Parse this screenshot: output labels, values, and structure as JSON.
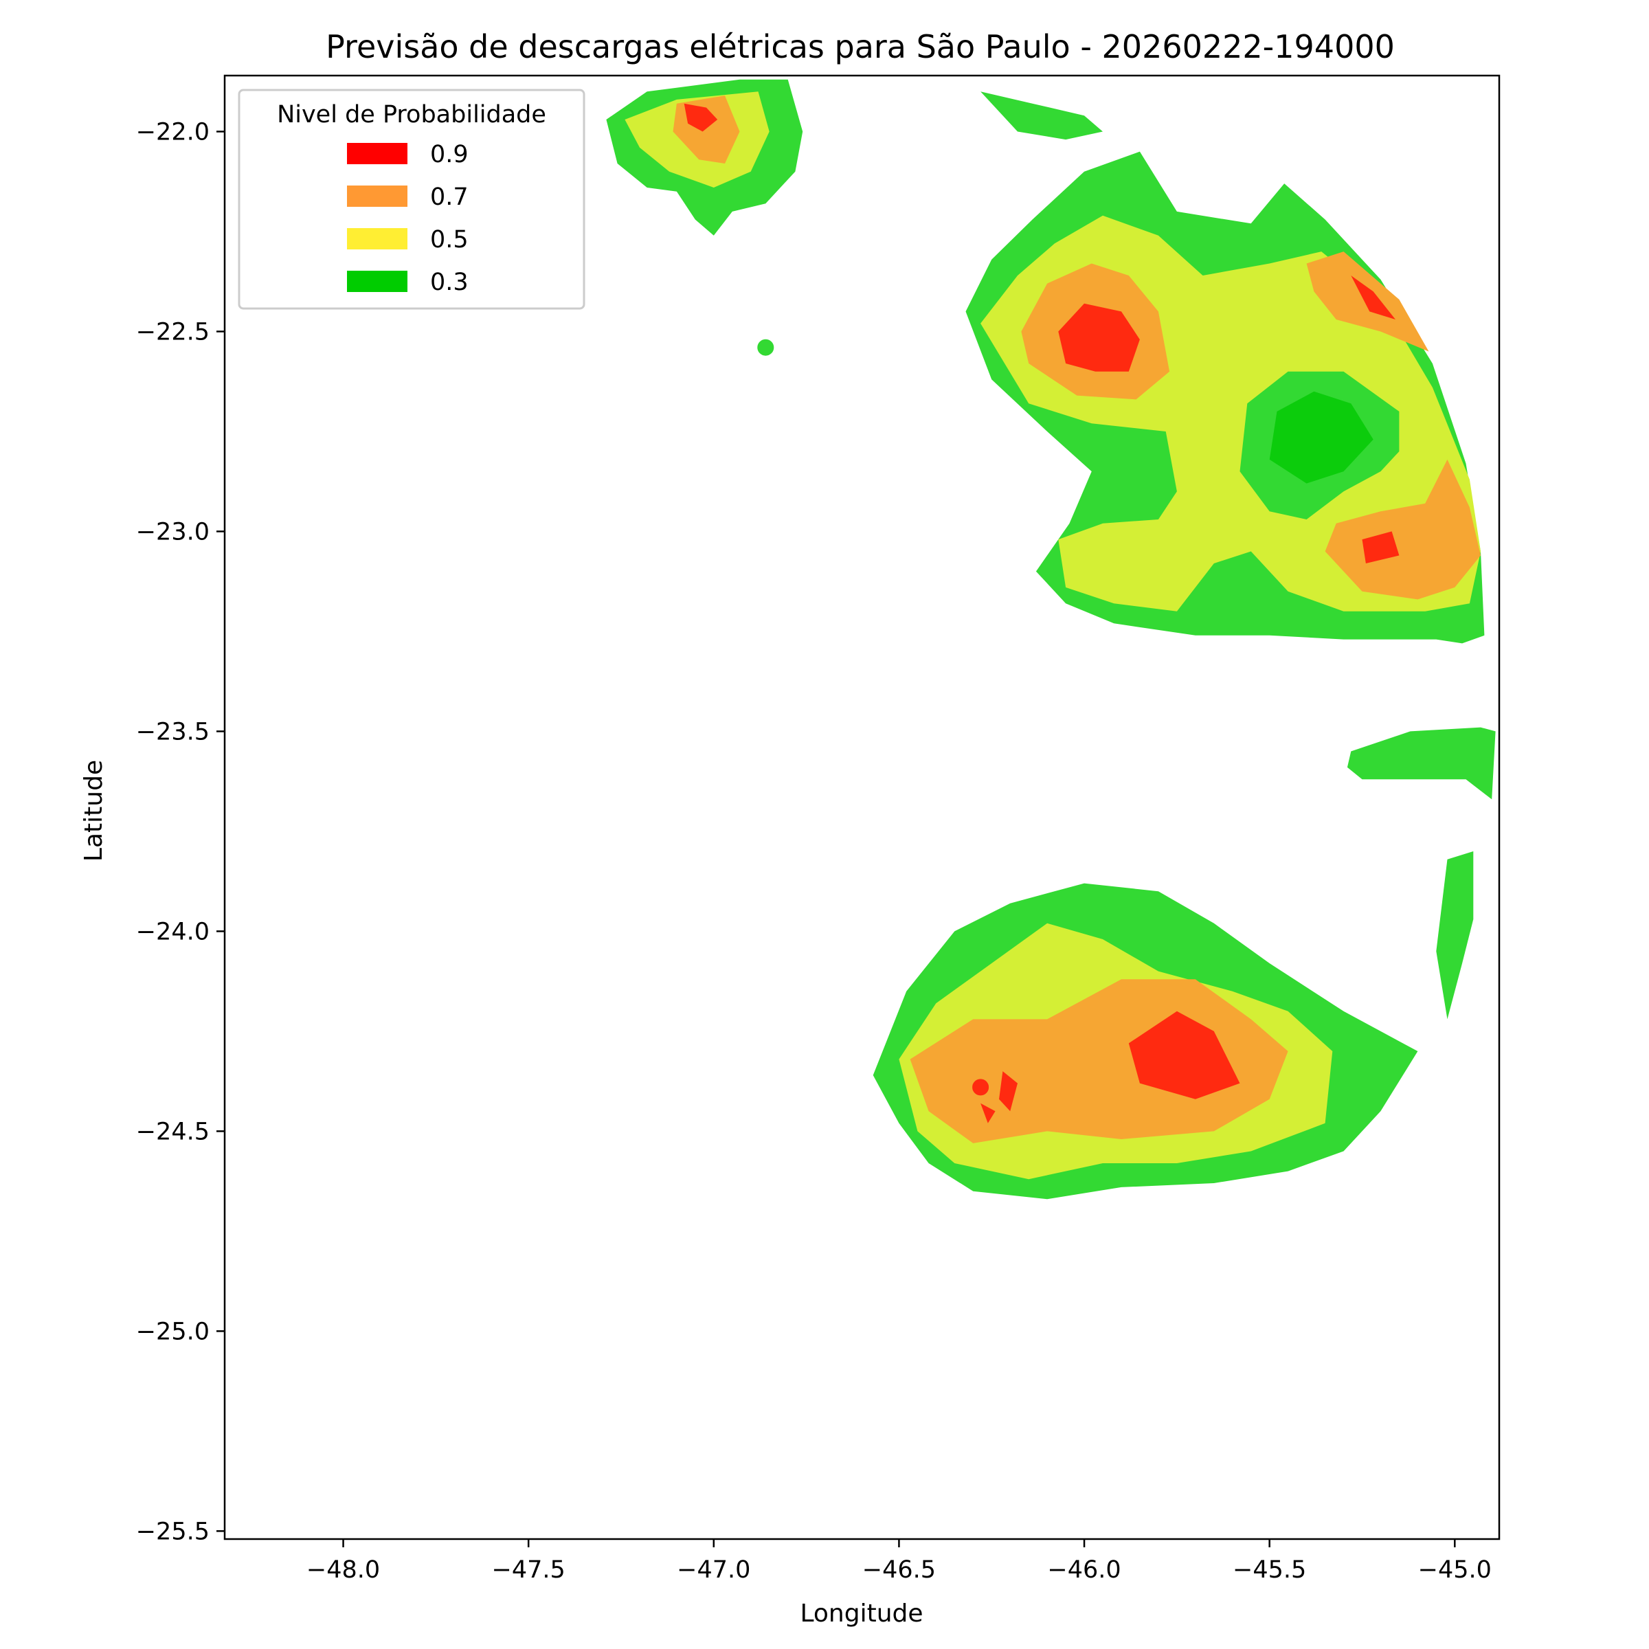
{
  "chart_data": {
    "type": "heatmap",
    "title": "Previsão de descargas elétricas para São Paulo - 20260222-194000",
    "xlabel": "Longitude",
    "ylabel": "Latitude",
    "xlim": [
      -48.32,
      -44.88
    ],
    "ylim": [
      -25.52,
      -21.86
    ],
    "xticks": [
      {
        "value": -48.0,
        "label": "−48.0"
      },
      {
        "value": -47.5,
        "label": "−47.5"
      },
      {
        "value": -47.0,
        "label": "−47.0"
      },
      {
        "value": -46.5,
        "label": "−46.5"
      },
      {
        "value": -46.0,
        "label": "−46.0"
      },
      {
        "value": -45.5,
        "label": "−45.5"
      },
      {
        "value": -45.0,
        "label": "−45.0"
      }
    ],
    "yticks": [
      {
        "value": -22.0,
        "label": "−22.0"
      },
      {
        "value": -22.5,
        "label": "−22.5"
      },
      {
        "value": -23.0,
        "label": "−23.0"
      },
      {
        "value": -23.5,
        "label": "−23.5"
      },
      {
        "value": -24.0,
        "label": "−24.0"
      },
      {
        "value": -24.5,
        "label": "−24.5"
      },
      {
        "value": -25.0,
        "label": "−25.0"
      },
      {
        "value": -25.5,
        "label": "−25.5"
      }
    ],
    "grid": false,
    "legend": {
      "title": "Nivel de Probabilidade",
      "placement": "upper-left",
      "entries": [
        {
          "label": "0.9",
          "color": "#ff0000"
        },
        {
          "label": "0.7",
          "color": "#ff9933"
        },
        {
          "label": "0.5",
          "color": "#ffee33"
        },
        {
          "label": "0.3",
          "color": "#00cc00"
        }
      ]
    },
    "fill_colors": {
      "0.3": "#33d933",
      "0.3_core": "#0ccc0c",
      "0.5": "#d4ef35",
      "0.7": "#f6a633",
      "0.9": "#ff2a10"
    },
    "regions": [
      {
        "level": "0.3",
        "points": [
          [
            -47.29,
            -21.97
          ],
          [
            -47.18,
            -21.9
          ],
          [
            -46.93,
            -21.87
          ],
          [
            -46.8,
            -21.87
          ],
          [
            -46.76,
            -22.0
          ],
          [
            -46.78,
            -22.1
          ],
          [
            -46.86,
            -22.18
          ],
          [
            -46.95,
            -22.2
          ],
          [
            -47.0,
            -22.26
          ],
          [
            -47.05,
            -22.22
          ],
          [
            -47.1,
            -22.15
          ],
          [
            -47.18,
            -22.14
          ],
          [
            -47.26,
            -22.08
          ]
        ]
      },
      {
        "level": "0.5",
        "points": [
          [
            -47.24,
            -21.97
          ],
          [
            -47.1,
            -21.92
          ],
          [
            -46.88,
            -21.9
          ],
          [
            -46.85,
            -22.0
          ],
          [
            -46.9,
            -22.1
          ],
          [
            -47.0,
            -22.14
          ],
          [
            -47.12,
            -22.1
          ],
          [
            -47.2,
            -22.04
          ]
        ]
      },
      {
        "level": "0.7",
        "points": [
          [
            -47.1,
            -21.93
          ],
          [
            -46.97,
            -21.91
          ],
          [
            -46.93,
            -22.0
          ],
          [
            -46.97,
            -22.08
          ],
          [
            -47.04,
            -22.07
          ],
          [
            -47.11,
            -22.0
          ]
        ]
      },
      {
        "level": "0.9",
        "points": [
          [
            -47.08,
            -21.93
          ],
          [
            -47.02,
            -21.94
          ],
          [
            -46.99,
            -21.97
          ],
          [
            -47.03,
            -22.0
          ],
          [
            -47.07,
            -21.98
          ]
        ]
      },
      {
        "level": "0.3",
        "points": [
          [
            -46.28,
            -21.9
          ],
          [
            -46.14,
            -21.93
          ],
          [
            -46.0,
            -21.96
          ],
          [
            -45.95,
            -22.0
          ],
          [
            -46.05,
            -22.02
          ],
          [
            -46.18,
            -22.0
          ]
        ]
      },
      {
        "level": "0.3",
        "points": [
          [
            -46.32,
            -22.45
          ],
          [
            -46.25,
            -22.32
          ],
          [
            -46.14,
            -22.22
          ],
          [
            -46.0,
            -22.1
          ],
          [
            -45.85,
            -22.05
          ],
          [
            -45.75,
            -22.2
          ],
          [
            -45.55,
            -22.23
          ],
          [
            -45.46,
            -22.13
          ],
          [
            -45.35,
            -22.22
          ],
          [
            -45.2,
            -22.37
          ],
          [
            -45.06,
            -22.58
          ],
          [
            -44.97,
            -22.83
          ],
          [
            -44.93,
            -23.05
          ],
          [
            -44.92,
            -23.26
          ],
          [
            -44.98,
            -23.28
          ],
          [
            -45.05,
            -23.27
          ],
          [
            -45.3,
            -23.27
          ],
          [
            -45.5,
            -23.26
          ],
          [
            -45.7,
            -23.26
          ],
          [
            -45.92,
            -23.23
          ],
          [
            -46.05,
            -23.18
          ],
          [
            -46.13,
            -23.1
          ],
          [
            -46.04,
            -22.98
          ],
          [
            -45.98,
            -22.85
          ],
          [
            -46.1,
            -22.75
          ],
          [
            -46.25,
            -22.62
          ]
        ]
      },
      {
        "level": "0.5",
        "points": [
          [
            -46.28,
            -22.48
          ],
          [
            -46.18,
            -22.36
          ],
          [
            -46.08,
            -22.28
          ],
          [
            -45.95,
            -22.21
          ],
          [
            -45.8,
            -22.26
          ],
          [
            -45.68,
            -22.36
          ],
          [
            -45.5,
            -22.33
          ],
          [
            -45.36,
            -22.3
          ],
          [
            -45.2,
            -22.42
          ],
          [
            -45.06,
            -22.64
          ],
          [
            -44.96,
            -22.87
          ],
          [
            -44.93,
            -23.05
          ],
          [
            -44.96,
            -23.18
          ],
          [
            -45.08,
            -23.2
          ],
          [
            -45.3,
            -23.2
          ],
          [
            -45.45,
            -23.15
          ],
          [
            -45.55,
            -23.05
          ],
          [
            -45.65,
            -23.08
          ],
          [
            -45.75,
            -23.2
          ],
          [
            -45.92,
            -23.18
          ],
          [
            -46.05,
            -23.14
          ],
          [
            -46.07,
            -23.02
          ],
          [
            -45.95,
            -22.98
          ],
          [
            -45.8,
            -22.97
          ],
          [
            -45.75,
            -22.9
          ],
          [
            -45.78,
            -22.75
          ],
          [
            -45.98,
            -22.73
          ],
          [
            -46.15,
            -22.68
          ]
        ]
      },
      {
        "level": "0.3",
        "points": [
          [
            -45.56,
            -22.68
          ],
          [
            -45.45,
            -22.6
          ],
          [
            -45.3,
            -22.6
          ],
          [
            -45.15,
            -22.7
          ],
          [
            -45.15,
            -22.8
          ],
          [
            -45.2,
            -22.85
          ],
          [
            -45.3,
            -22.9
          ],
          [
            -45.4,
            -22.97
          ],
          [
            -45.5,
            -22.95
          ],
          [
            -45.58,
            -22.85
          ]
        ]
      },
      {
        "level": "0.3_core",
        "points": [
          [
            -45.48,
            -22.7
          ],
          [
            -45.38,
            -22.65
          ],
          [
            -45.28,
            -22.68
          ],
          [
            -45.22,
            -22.77
          ],
          [
            -45.3,
            -22.85
          ],
          [
            -45.4,
            -22.88
          ],
          [
            -45.5,
            -22.82
          ]
        ]
      },
      {
        "level": "0.7",
        "points": [
          [
            -46.17,
            -22.5
          ],
          [
            -46.1,
            -22.38
          ],
          [
            -45.98,
            -22.33
          ],
          [
            -45.88,
            -22.36
          ],
          [
            -45.8,
            -22.45
          ],
          [
            -45.77,
            -22.6
          ],
          [
            -45.86,
            -22.67
          ],
          [
            -46.02,
            -22.66
          ],
          [
            -46.15,
            -22.58
          ]
        ]
      },
      {
        "level": "0.9",
        "points": [
          [
            -46.07,
            -22.5
          ],
          [
            -46.0,
            -22.43
          ],
          [
            -45.9,
            -22.45
          ],
          [
            -45.85,
            -22.52
          ],
          [
            -45.88,
            -22.6
          ],
          [
            -45.97,
            -22.6
          ],
          [
            -46.05,
            -22.58
          ]
        ]
      },
      {
        "level": "0.7",
        "points": [
          [
            -45.4,
            -22.33
          ],
          [
            -45.3,
            -22.3
          ],
          [
            -45.15,
            -22.42
          ],
          [
            -45.07,
            -22.55
          ],
          [
            -45.2,
            -22.5
          ],
          [
            -45.32,
            -22.47
          ],
          [
            -45.38,
            -22.4
          ]
        ]
      },
      {
        "level": "0.9",
        "points": [
          [
            -45.28,
            -22.36
          ],
          [
            -45.22,
            -22.4
          ],
          [
            -45.16,
            -22.47
          ],
          [
            -45.23,
            -22.45
          ]
        ]
      },
      {
        "level": "0.7",
        "points": [
          [
            -45.2,
            -22.95
          ],
          [
            -45.08,
            -22.93
          ],
          [
            -45.02,
            -22.82
          ],
          [
            -44.96,
            -22.94
          ],
          [
            -44.93,
            -23.06
          ],
          [
            -45.0,
            -23.14
          ],
          [
            -45.1,
            -23.17
          ],
          [
            -45.25,
            -23.15
          ],
          [
            -45.35,
            -23.05
          ],
          [
            -45.32,
            -22.98
          ]
        ]
      },
      {
        "level": "0.9",
        "points": [
          [
            -45.25,
            -23.02
          ],
          [
            -45.17,
            -23.0
          ],
          [
            -45.15,
            -23.06
          ],
          [
            -45.24,
            -23.08
          ]
        ]
      },
      {
        "level": "0.3",
        "points": [
          [
            -45.28,
            -23.55
          ],
          [
            -45.12,
            -23.5
          ],
          [
            -44.93,
            -23.49
          ],
          [
            -44.89,
            -23.5
          ],
          [
            -44.9,
            -23.67
          ],
          [
            -44.97,
            -23.62
          ],
          [
            -45.1,
            -23.62
          ],
          [
            -45.25,
            -23.62
          ],
          [
            -45.29,
            -23.59
          ]
        ]
      },
      {
        "level": "0.3",
        "points": [
          [
            -45.02,
            -23.82
          ],
          [
            -44.95,
            -23.8
          ],
          [
            -44.95,
            -23.97
          ],
          [
            -44.98,
            -24.08
          ],
          [
            -45.02,
            -24.22
          ],
          [
            -45.05,
            -24.05
          ]
        ]
      },
      {
        "level": "0.3",
        "points": [
          [
            -46.57,
            -24.36
          ],
          [
            -46.48,
            -24.15
          ],
          [
            -46.35,
            -24.0
          ],
          [
            -46.2,
            -23.93
          ],
          [
            -46.0,
            -23.88
          ],
          [
            -45.8,
            -23.9
          ],
          [
            -45.65,
            -23.98
          ],
          [
            -45.5,
            -24.08
          ],
          [
            -45.3,
            -24.2
          ],
          [
            -45.1,
            -24.3
          ],
          [
            -45.2,
            -24.45
          ],
          [
            -45.3,
            -24.55
          ],
          [
            -45.45,
            -24.6
          ],
          [
            -45.65,
            -24.63
          ],
          [
            -45.9,
            -24.64
          ],
          [
            -46.1,
            -24.67
          ],
          [
            -46.3,
            -24.65
          ],
          [
            -46.42,
            -24.58
          ],
          [
            -46.5,
            -24.48
          ]
        ]
      },
      {
        "level": "0.5",
        "points": [
          [
            -46.5,
            -24.32
          ],
          [
            -46.4,
            -24.18
          ],
          [
            -46.28,
            -24.1
          ],
          [
            -46.1,
            -23.98
          ],
          [
            -45.95,
            -24.02
          ],
          [
            -45.8,
            -24.1
          ],
          [
            -45.6,
            -24.15
          ],
          [
            -45.45,
            -24.2
          ],
          [
            -45.33,
            -24.3
          ],
          [
            -45.35,
            -24.48
          ],
          [
            -45.55,
            -24.55
          ],
          [
            -45.75,
            -24.58
          ],
          [
            -45.95,
            -24.58
          ],
          [
            -46.15,
            -24.62
          ],
          [
            -46.35,
            -24.58
          ],
          [
            -46.45,
            -24.5
          ]
        ]
      },
      {
        "level": "0.7",
        "points": [
          [
            -46.47,
            -24.32
          ],
          [
            -46.3,
            -24.22
          ],
          [
            -46.1,
            -24.22
          ],
          [
            -45.9,
            -24.12
          ],
          [
            -45.7,
            -24.12
          ],
          [
            -45.55,
            -24.22
          ],
          [
            -45.45,
            -24.3
          ],
          [
            -45.5,
            -24.42
          ],
          [
            -45.65,
            -24.5
          ],
          [
            -45.9,
            -24.52
          ],
          [
            -46.1,
            -24.5
          ],
          [
            -46.3,
            -24.53
          ],
          [
            -46.42,
            -24.45
          ]
        ]
      },
      {
        "level": "0.9",
        "points": [
          [
            -45.88,
            -24.28
          ],
          [
            -45.75,
            -24.2
          ],
          [
            -45.65,
            -24.25
          ],
          [
            -45.58,
            -24.38
          ],
          [
            -45.7,
            -24.42
          ],
          [
            -45.85,
            -24.38
          ]
        ]
      },
      {
        "level": "0.9",
        "points": [
          [
            -46.22,
            -24.35
          ],
          [
            -46.18,
            -24.38
          ],
          [
            -46.2,
            -24.45
          ],
          [
            -46.17,
            -24.48
          ],
          [
            -46.23,
            -24.42
          ]
        ]
      },
      {
        "level": "0.9",
        "points": [
          [
            -46.28,
            -24.43
          ],
          [
            -46.24,
            -24.45
          ],
          [
            -46.26,
            -24.48
          ]
        ]
      }
    ],
    "dots": [
      {
        "level": "0.3",
        "lon": -46.86,
        "lat": -22.54
      },
      {
        "level": "0.9",
        "lon": -46.28,
        "lat": -24.39
      }
    ]
  }
}
